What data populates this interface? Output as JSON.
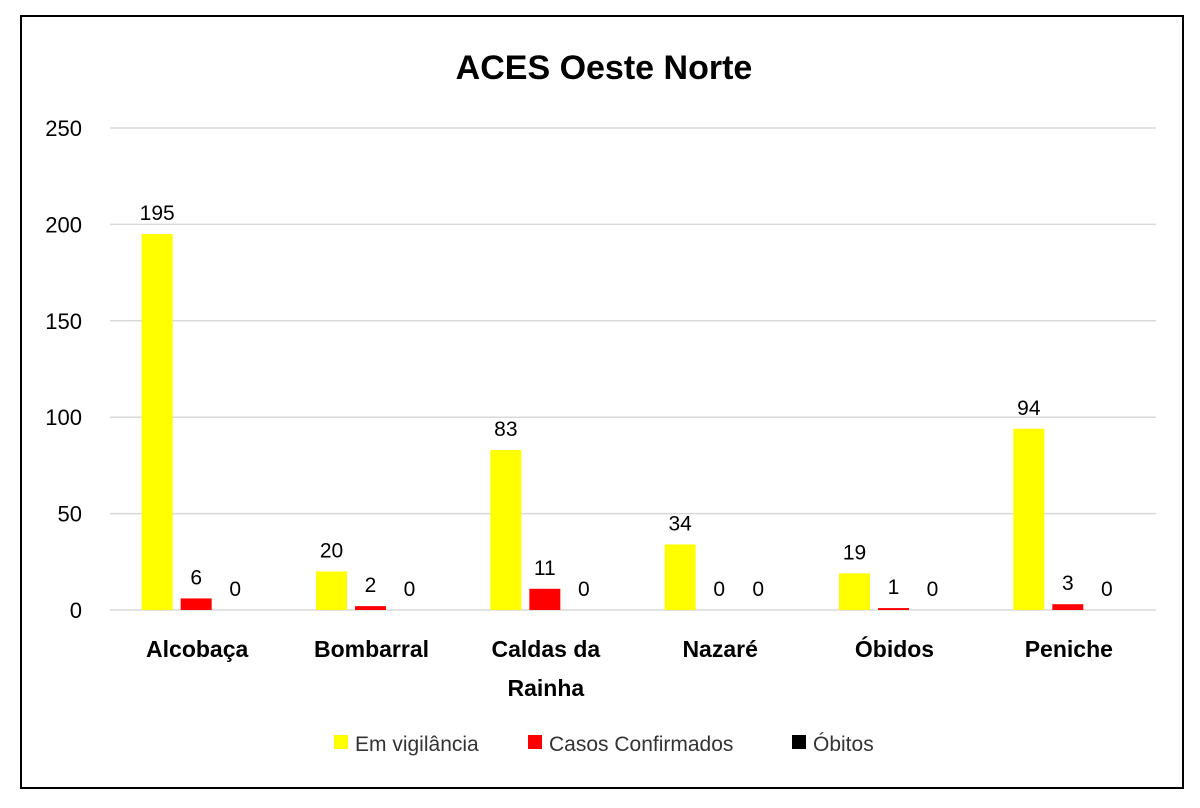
{
  "chart_data": {
    "type": "bar",
    "title": "ACES Oeste Norte",
    "categories": [
      [
        "Alcobaça"
      ],
      [
        "Bombarral"
      ],
      [
        "Caldas da",
        "Rainha"
      ],
      [
        "Nazaré"
      ],
      [
        "Óbidos"
      ],
      [
        "Peniche"
      ]
    ],
    "series": [
      {
        "name": "Em vigilância",
        "color": "#FFFF00",
        "values": [
          195,
          20,
          83,
          34,
          19,
          94
        ]
      },
      {
        "name": "Casos Confirmados",
        "color": "#FF0000",
        "values": [
          6,
          2,
          11,
          0,
          1,
          3
        ]
      },
      {
        "name": "Óbitos",
        "color": "#000000",
        "values": [
          0,
          0,
          0,
          0,
          0,
          0
        ]
      }
    ],
    "yticks": [
      "0",
      "50",
      "100",
      "150",
      "200",
      "250"
    ],
    "ylim": [
      0,
      250
    ],
    "grid": true,
    "legend": "bottom",
    "xlabel": "",
    "ylabel": ""
  }
}
